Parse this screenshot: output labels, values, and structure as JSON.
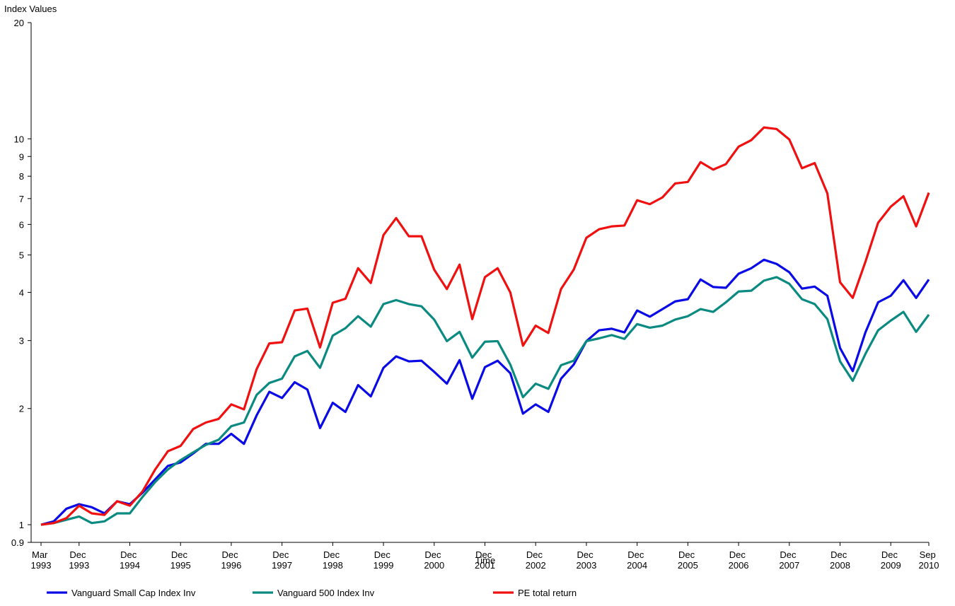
{
  "chart_data": {
    "type": "line",
    "y_label": "Index Values",
    "x_label": "Time",
    "log_scale": true,
    "grid": false,
    "legend": "bottom",
    "ylim": [
      0.9,
      20
    ],
    "yticks": [
      0.9,
      1,
      2,
      3,
      4,
      5,
      6,
      7,
      8,
      9,
      10,
      20
    ],
    "categories": [
      "Mar 1993",
      null,
      null,
      "Dec 1993",
      null,
      null,
      null,
      "Dec 1994",
      null,
      null,
      null,
      "Dec 1995",
      null,
      null,
      null,
      "Dec 1996",
      null,
      null,
      null,
      "Dec 1997",
      null,
      null,
      null,
      "Dec 1998",
      null,
      null,
      null,
      "Dec 1999",
      null,
      null,
      null,
      "Dec 2000",
      null,
      null,
      null,
      "Dec 2001",
      null,
      null,
      null,
      "Dec 2002",
      null,
      null,
      null,
      "Dec 2003",
      null,
      null,
      null,
      "Dec 2004",
      null,
      null,
      null,
      "Dec 2005",
      null,
      null,
      null,
      "Dec 2006",
      null,
      null,
      null,
      "Dec 2007",
      null,
      null,
      null,
      "Dec 2008",
      null,
      null,
      null,
      "Dec 2009",
      null,
      null,
      "Sep 2010"
    ],
    "series": [
      {
        "name": "Vanguard Small Cap Index Inv",
        "color": "#0a0ae6",
        "values": [
          1.0,
          1.02,
          1.1,
          1.13,
          1.11,
          1.07,
          1.15,
          1.13,
          1.21,
          1.31,
          1.42,
          1.45,
          1.53,
          1.62,
          1.62,
          1.72,
          1.62,
          1.92,
          2.21,
          2.13,
          2.34,
          2.24,
          1.78,
          2.07,
          1.96,
          2.3,
          2.15,
          2.55,
          2.73,
          2.65,
          2.66,
          2.49,
          2.32,
          2.67,
          2.12,
          2.56,
          2.66,
          2.47,
          1.94,
          2.05,
          1.96,
          2.39,
          2.6,
          2.99,
          3.19,
          3.22,
          3.15,
          3.59,
          3.46,
          3.62,
          3.79,
          3.84,
          4.32,
          4.13,
          4.11,
          4.47,
          4.62,
          4.86,
          4.74,
          4.51,
          4.09,
          4.14,
          3.92,
          2.87,
          2.5,
          3.15,
          3.77,
          3.92,
          4.3,
          3.87,
          4.32
        ]
      },
      {
        "name": "Vanguard 500 Index Inv",
        "color": "#0a8a80",
        "values": [
          1.0,
          1.01,
          1.03,
          1.05,
          1.01,
          1.02,
          1.07,
          1.07,
          1.18,
          1.29,
          1.39,
          1.47,
          1.54,
          1.61,
          1.66,
          1.8,
          1.84,
          2.17,
          2.33,
          2.39,
          2.73,
          2.82,
          2.55,
          3.09,
          3.23,
          3.47,
          3.26,
          3.73,
          3.82,
          3.73,
          3.68,
          3.4,
          2.99,
          3.16,
          2.71,
          2.98,
          2.99,
          2.6,
          2.14,
          2.32,
          2.25,
          2.59,
          2.66,
          2.99,
          3.04,
          3.1,
          3.03,
          3.31,
          3.24,
          3.28,
          3.4,
          3.47,
          3.62,
          3.56,
          3.77,
          4.02,
          4.04,
          4.29,
          4.38,
          4.21,
          3.84,
          3.73,
          3.41,
          2.65,
          2.36,
          2.77,
          3.19,
          3.38,
          3.56,
          3.16,
          3.5
        ]
      },
      {
        "name": "PE total return",
        "color": "#f01010",
        "values": [
          1.0,
          1.01,
          1.04,
          1.12,
          1.07,
          1.06,
          1.15,
          1.12,
          1.22,
          1.39,
          1.55,
          1.6,
          1.77,
          1.84,
          1.88,
          2.05,
          1.99,
          2.53,
          2.95,
          2.97,
          3.59,
          3.63,
          2.88,
          3.76,
          3.85,
          4.62,
          4.23,
          5.63,
          6.23,
          5.59,
          5.59,
          4.58,
          4.08,
          4.72,
          3.41,
          4.38,
          4.62,
          4.0,
          2.91,
          3.28,
          3.14,
          4.08,
          4.58,
          5.54,
          5.83,
          5.93,
          5.96,
          6.93,
          6.77,
          7.05,
          7.66,
          7.73,
          8.7,
          8.32,
          8.6,
          9.54,
          9.92,
          10.7,
          10.6,
          9.96,
          8.39,
          8.65,
          7.22,
          4.25,
          3.87,
          4.8,
          6.06,
          6.67,
          7.1,
          5.93,
          7.25
        ]
      }
    ]
  }
}
